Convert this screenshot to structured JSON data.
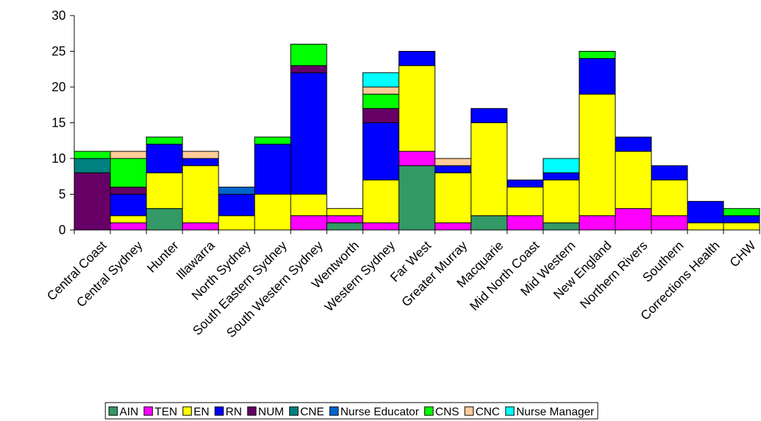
{
  "chart_data": {
    "type": "bar",
    "stacked": true,
    "categories": [
      "Central Coast",
      "Central Sydney",
      "Hunter",
      "Illawarra",
      "North Sydney",
      "South Eastern Sydney",
      "South Western Sydney",
      "Wentworth",
      "Western Sydney",
      "Far West",
      "Greater Murray",
      "Macquarie",
      "Mid North Coast",
      "Mid Western",
      "New England",
      "Northern Rivers",
      "Southern",
      "Corrections Health",
      "CHW"
    ],
    "series": [
      {
        "name": "AIN",
        "color": "#339966",
        "values": [
          0,
          0,
          3,
          0,
          0,
          0,
          0,
          1,
          0,
          9,
          0,
          2,
          0,
          1,
          0,
          0,
          0,
          0,
          0
        ]
      },
      {
        "name": "TEN",
        "color": "#ff00ff",
        "values": [
          0,
          1,
          0,
          1,
          0,
          0,
          2,
          1,
          1,
          2,
          1,
          0,
          2,
          0,
          2,
          3,
          2,
          0,
          0
        ]
      },
      {
        "name": "EN",
        "color": "#ffff00",
        "values": [
          0,
          1,
          5,
          8,
          2,
          5,
          3,
          1,
          6,
          12,
          7,
          13,
          4,
          6,
          17,
          8,
          5,
          1,
          1
        ]
      },
      {
        "name": "RN",
        "color": "#0000ff",
        "values": [
          0,
          3,
          4,
          1,
          3,
          7,
          17,
          0,
          8,
          2,
          1,
          2,
          1,
          1,
          5,
          2,
          2,
          3,
          1
        ]
      },
      {
        "name": "NUM",
        "color": "#660066",
        "values": [
          8,
          1,
          0,
          0,
          0,
          0,
          1,
          0,
          2,
          0,
          0,
          0,
          0,
          0,
          0,
          0,
          0,
          0,
          0
        ]
      },
      {
        "name": "CNE",
        "color": "#008080",
        "values": [
          2,
          0,
          0,
          0,
          0,
          0,
          0,
          0,
          0,
          0,
          0,
          0,
          0,
          0,
          0,
          0,
          0,
          0,
          0
        ]
      },
      {
        "name": "Nurse Educator",
        "color": "#0066cc",
        "values": [
          0,
          0,
          0,
          0,
          1,
          0,
          0,
          0,
          0,
          0,
          0,
          0,
          0,
          0,
          0,
          0,
          0,
          0,
          0
        ]
      },
      {
        "name": "CNS",
        "color": "#00ff00",
        "values": [
          1,
          4,
          1,
          0,
          0,
          1,
          3,
          0,
          2,
          0,
          0,
          0,
          0,
          0,
          1,
          0,
          0,
          0,
          1
        ]
      },
      {
        "name": "CNC",
        "color": "#ffcc99",
        "values": [
          0,
          1,
          0,
          1,
          0,
          0,
          0,
          0,
          1,
          0,
          1,
          0,
          0,
          0,
          0,
          0,
          0,
          0,
          0
        ]
      },
      {
        "name": "Nurse Manager",
        "color": "#00ffff",
        "values": [
          0,
          0,
          0,
          0,
          0,
          0,
          0,
          0,
          2,
          0,
          0,
          0,
          0,
          2,
          0,
          0,
          0,
          0,
          0
        ]
      }
    ],
    "ylim": [
      0,
      30
    ],
    "yticks": [
      0,
      5,
      10,
      15,
      20,
      25,
      30
    ],
    "title": "",
    "xlabel": "",
    "ylabel": "",
    "grid": false,
    "legend_position": "bottom"
  }
}
